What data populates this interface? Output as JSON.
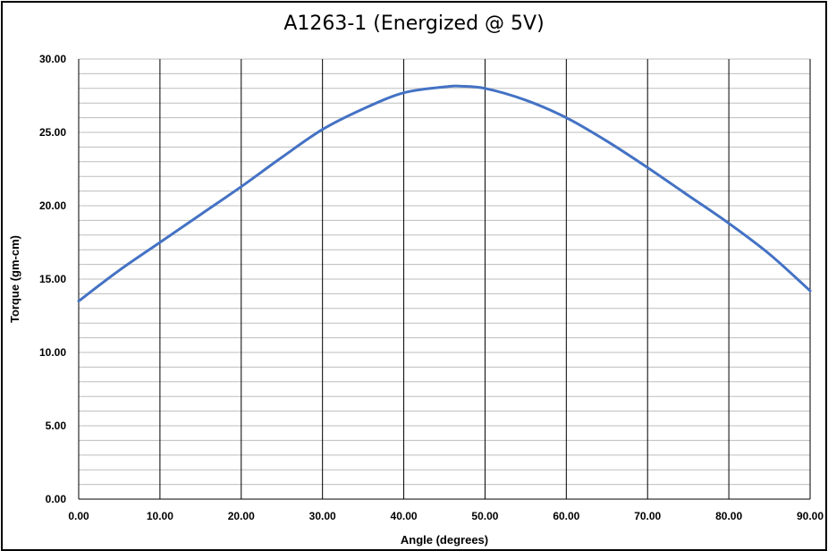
{
  "chart_data": {
    "type": "line",
    "title": "A1263-1 (Energized @ 5V)",
    "xlabel": "Angle  (degrees)",
    "ylabel": "Torque (gm-cm)",
    "xlim": [
      0,
      90
    ],
    "ylim": [
      0,
      30
    ],
    "x_ticks": [
      "0.00",
      "10.00",
      "20.00",
      "30.00",
      "40.00",
      "50.00",
      "60.00",
      "70.00",
      "80.00",
      "90.00"
    ],
    "y_ticks": [
      "0.00",
      "5.00",
      "10.00",
      "15.00",
      "20.00",
      "25.00",
      "30.00"
    ],
    "grid": {
      "major_x": true,
      "minor_y": true
    },
    "series": [
      {
        "color": "#4472C4",
        "x": [
          0,
          5,
          10,
          15,
          20,
          25,
          30,
          35,
          40,
          45,
          47,
          50,
          55,
          60,
          65,
          70,
          75,
          80,
          85,
          90
        ],
        "y": [
          13.5,
          15.6,
          17.5,
          19.4,
          21.3,
          23.3,
          25.2,
          26.6,
          27.7,
          28.1,
          28.15,
          28.0,
          27.2,
          26.0,
          24.4,
          22.6,
          20.7,
          18.8,
          16.7,
          14.2
        ]
      }
    ]
  }
}
